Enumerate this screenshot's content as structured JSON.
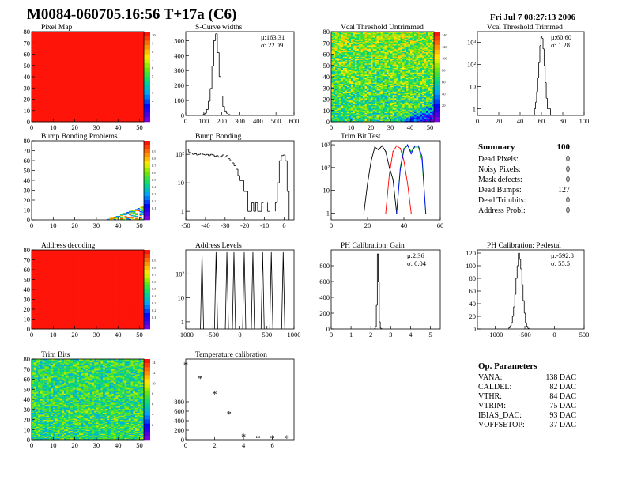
{
  "header": {
    "title": "M0084-060705.16:56 T+17a (C6)",
    "date": "Fri Jul  7 08:27:13 2006"
  },
  "summary": {
    "title": "Summary",
    "total": "100",
    "rows": [
      {
        "label": "Dead Pixels:",
        "value": "0"
      },
      {
        "label": "Noisy Pixels:",
        "value": "0"
      },
      {
        "label": "Mask defects:",
        "value": "0"
      },
      {
        "label": "Dead Bumps:",
        "value": "127"
      },
      {
        "label": "Dead Trimbits:",
        "value": "0"
      },
      {
        "label": "Address Probl:",
        "value": "0"
      }
    ]
  },
  "op_params": {
    "title": "Op. Parameters",
    "rows": [
      {
        "label": "VANA:",
        "value": "138 DAC"
      },
      {
        "label": "CALDEL:",
        "value": "82 DAC"
      },
      {
        "label": "VTHR:",
        "value": "84 DAC"
      },
      {
        "label": "VTRIM:",
        "value": "75 DAC"
      },
      {
        "label": "IBIAS_DAC:",
        "value": "93 DAC"
      },
      {
        "label": "VOFFSETOP:",
        "value": "37 DAC"
      }
    ]
  },
  "colors": {
    "hist_line": "#000000",
    "trim_red": "#ff0000",
    "trim_green": "#00aa00",
    "trim_blue": "#0000ff",
    "map_red": "#ff1a0a"
  },
  "chart_data": [
    {
      "id": "pixel_map",
      "type": "heatmap",
      "title": "Pixel Map",
      "xlim": [
        0,
        52
      ],
      "ylim": [
        0,
        80
      ],
      "xticks": [
        "0",
        "10",
        "20",
        "30",
        "40",
        "50"
      ],
      "yticks": [
        "0",
        "10",
        "20",
        "30",
        "40",
        "50",
        "60",
        "70",
        "80"
      ],
      "pattern": "uniform_high",
      "zrange": [
        0,
        10
      ],
      "palette_labels": [
        "10",
        "9",
        "8",
        "7",
        "6",
        "5",
        "4",
        "3",
        "2",
        "1"
      ]
    },
    {
      "id": "scurve_widths",
      "type": "histogram",
      "title": "S-Curve widths",
      "xlim": [
        0,
        600
      ],
      "ylim": [
        0,
        560
      ],
      "xticks": [
        "0",
        "100",
        "200",
        "300",
        "400",
        "500",
        "600"
      ],
      "yticks": [
        "0",
        "100",
        "200",
        "300",
        "400",
        "500"
      ],
      "stats": [
        "μ:163.31",
        "σ: 22.09"
      ],
      "bins": [
        [
          90,
          2
        ],
        [
          100,
          6
        ],
        [
          110,
          15
        ],
        [
          120,
          40
        ],
        [
          130,
          95
        ],
        [
          140,
          180
        ],
        [
          150,
          330
        ],
        [
          160,
          500
        ],
        [
          170,
          545
        ],
        [
          180,
          420
        ],
        [
          190,
          260
        ],
        [
          200,
          130
        ],
        [
          210,
          60
        ],
        [
          220,
          30
        ],
        [
          230,
          15
        ],
        [
          240,
          6
        ],
        [
          250,
          2
        ]
      ]
    },
    {
      "id": "vcal_untrimmed",
      "type": "heatmap",
      "title": "Vcal Threshold Untrimmed",
      "xlim": [
        0,
        52
      ],
      "ylim": [
        0,
        80
      ],
      "xticks": [
        "0",
        "10",
        "20",
        "30",
        "40",
        "50"
      ],
      "yticks": [
        "0",
        "10",
        "20",
        "30",
        "40",
        "50",
        "60",
        "70",
        "80"
      ],
      "pattern": "gradient_noisy",
      "zrange": [
        0,
        150
      ],
      "palette_labels": [
        "140",
        "120",
        "100",
        "80",
        "60",
        "40",
        "20"
      ]
    },
    {
      "id": "vcal_trimmed",
      "type": "histogram",
      "title": "Vcal Threshold Trimmed",
      "xlim": [
        0,
        100
      ],
      "ylog": true,
      "ylim": [
        0.5,
        3000
      ],
      "xticks": [
        "0",
        "20",
        "40",
        "60",
        "80",
        "100"
      ],
      "yticks": [
        "1",
        "10",
        "10²",
        "10³"
      ],
      "stats": [
        "μ:60.60",
        "σ: 1.28"
      ],
      "bins": [
        [
          54,
          1
        ],
        [
          55,
          2
        ],
        [
          56,
          6
        ],
        [
          57,
          25
        ],
        [
          58,
          120
        ],
        [
          59,
          700
        ],
        [
          60,
          1900
        ],
        [
          61,
          1500
        ],
        [
          62,
          500
        ],
        [
          63,
          90
        ],
        [
          64,
          15
        ],
        [
          65,
          3
        ],
        [
          66,
          1
        ],
        [
          68,
          1
        ]
      ]
    },
    {
      "id": "bump_map",
      "type": "heatmap",
      "title": "Bump Bonding Problems",
      "xlim": [
        0,
        52
      ],
      "ylim": [
        0,
        80
      ],
      "xticks": [
        "0",
        "10",
        "20",
        "30",
        "40",
        "50"
      ],
      "yticks": [
        "0",
        "10",
        "20",
        "30",
        "40",
        "50",
        "60",
        "70",
        "80"
      ],
      "pattern": "corner_sparse",
      "zrange": [
        0,
        1
      ],
      "palette_labels": [
        "1",
        "0.9",
        "0.8",
        "0.7",
        "0.6",
        "0.5",
        "0.4",
        "0.3",
        "0.2",
        "0.1"
      ]
    },
    {
      "id": "bump_bonding",
      "type": "histogram",
      "title": "Bump Bonding",
      "xlim": [
        -50,
        5
      ],
      "ylog": true,
      "ylim": [
        0.5,
        300
      ],
      "xticks": [
        "-50",
        "-40",
        "-30",
        "-20",
        "-10",
        "0"
      ],
      "yticks": [
        "1",
        "10",
        "10²"
      ],
      "bins": [
        [
          -49,
          150
        ],
        [
          -48,
          120
        ],
        [
          -47,
          110
        ],
        [
          -46,
          100
        ],
        [
          -45,
          105
        ],
        [
          -44,
          95
        ],
        [
          -43,
          100
        ],
        [
          -42,
          110
        ],
        [
          -41,
          100
        ],
        [
          -40,
          95
        ],
        [
          -39,
          100
        ],
        [
          -38,
          90
        ],
        [
          -37,
          100
        ],
        [
          -36,
          95
        ],
        [
          -35,
          85
        ],
        [
          -34,
          90
        ],
        [
          -33,
          80
        ],
        [
          -32,
          85
        ],
        [
          -31,
          95
        ],
        [
          -30,
          80
        ],
        [
          -29,
          90
        ],
        [
          -28,
          70
        ],
        [
          -27,
          60
        ],
        [
          -26,
          50
        ],
        [
          -25,
          40
        ],
        [
          -24,
          30
        ],
        [
          -23,
          18
        ],
        [
          -22,
          12
        ],
        [
          -21,
          12
        ],
        [
          -20,
          5
        ],
        [
          -19,
          5
        ],
        [
          -18,
          1
        ],
        [
          -17,
          1
        ],
        [
          -16,
          2
        ],
        [
          -15,
          1
        ],
        [
          -14,
          2
        ],
        [
          -13,
          1
        ],
        [
          -12,
          1
        ],
        [
          -11,
          2
        ],
        [
          -8,
          1
        ],
        [
          -4,
          2
        ],
        [
          -3,
          10
        ],
        [
          -2,
          60
        ],
        [
          -1,
          90
        ],
        [
          0,
          95
        ],
        [
          1,
          60
        ],
        [
          2,
          5
        ]
      ]
    },
    {
      "id": "trim_bit_test",
      "type": "line",
      "title": "Trim Bit Test",
      "xlim": [
        0,
        60
      ],
      "ylog": true,
      "ylim": [
        0.5,
        1500
      ],
      "xticks": [
        "0",
        "20",
        "40",
        "60"
      ],
      "yticks": [
        "1",
        "10",
        "10²",
        "10³"
      ],
      "series": [
        {
          "color_key": "hist_line",
          "x": [
            18,
            20,
            22,
            24,
            26,
            28,
            30,
            32,
            34,
            36
          ],
          "values": [
            1,
            20,
            200,
            800,
            600,
            900,
            500,
            100,
            30,
            1
          ]
        },
        {
          "color_key": "trim_red",
          "x": [
            30,
            32,
            34,
            36,
            38,
            40,
            42,
            44
          ],
          "values": [
            1,
            50,
            500,
            900,
            700,
            200,
            20,
            1
          ]
        },
        {
          "color_key": "trim_green",
          "x": [
            36,
            38,
            40,
            42,
            44,
            46,
            48,
            50,
            52
          ],
          "values": [
            1,
            100,
            700,
            900,
            500,
            800,
            800,
            200,
            1
          ]
        },
        {
          "color_key": "trim_blue",
          "x": [
            36,
            38,
            40,
            42,
            44,
            46,
            48,
            50,
            52
          ],
          "values": [
            1,
            80,
            600,
            1000,
            400,
            900,
            900,
            300,
            1
          ]
        }
      ]
    },
    {
      "id": "address_map",
      "type": "heatmap",
      "title": "Address decoding",
      "xlim": [
        0,
        52
      ],
      "ylim": [
        0,
        80
      ],
      "xticks": [
        "0",
        "10",
        "20",
        "30",
        "40",
        "50"
      ],
      "yticks": [
        "0",
        "10",
        "20",
        "30",
        "40",
        "50",
        "60",
        "70",
        "80"
      ],
      "pattern": "uniform_high",
      "zrange": [
        0,
        1
      ],
      "palette_labels": [
        "1",
        "0.9",
        "0.8",
        "0.7",
        "0.6",
        "0.5",
        "0.4",
        "0.3",
        "0.2",
        "0.1"
      ]
    },
    {
      "id": "address_levels",
      "type": "histogram",
      "title": "Address Levels",
      "xlim": [
        -1000,
        1000
      ],
      "ylog": true,
      "ylim": [
        0.5,
        1000
      ],
      "xticks": [
        "-1000",
        "-500",
        "0",
        "500",
        "1000"
      ],
      "yticks": [
        "1",
        "10",
        "10²"
      ],
      "bins": [
        [
          -700,
          800
        ],
        [
          -440,
          800
        ],
        [
          -240,
          800
        ],
        [
          -110,
          800
        ],
        [
          80,
          800
        ],
        [
          240,
          800
        ],
        [
          420,
          800
        ],
        [
          580,
          800
        ],
        [
          800,
          800
        ]
      ]
    },
    {
      "id": "ph_gain",
      "type": "histogram",
      "title": "PH Calibration: Gain",
      "xlim": [
        0,
        5.5
      ],
      "ylim": [
        0,
        1000
      ],
      "xticks": [
        "0",
        "1",
        "2",
        "3",
        "4",
        "5"
      ],
      "yticks": [
        "0",
        "200",
        "400",
        "600",
        "800"
      ],
      "stats": [
        "μ:2.36",
        "σ: 0.04"
      ],
      "bins": [
        [
          2.2,
          5
        ],
        [
          2.25,
          30
        ],
        [
          2.3,
          300
        ],
        [
          2.35,
          950
        ],
        [
          2.4,
          600
        ],
        [
          2.45,
          90
        ],
        [
          2.5,
          10
        ],
        [
          2.55,
          2
        ]
      ]
    },
    {
      "id": "ph_pedestal",
      "type": "histogram",
      "title": "PH Calibration: Pedestal",
      "xlim": [
        -1300,
        500
      ],
      "ylim": [
        0,
        125
      ],
      "xticks": [
        "-1000",
        "-500",
        "0",
        "500"
      ],
      "yticks": [
        "0",
        "20",
        "40",
        "60",
        "80",
        "100",
        "120"
      ],
      "stats": [
        "μ:-592.8",
        "σ: 55.5"
      ],
      "bins": [
        [
          -760,
          2
        ],
        [
          -740,
          5
        ],
        [
          -720,
          10
        ],
        [
          -700,
          20
        ],
        [
          -680,
          35
        ],
        [
          -660,
          55
        ],
        [
          -640,
          80
        ],
        [
          -620,
          100
        ],
        [
          -600,
          120
        ],
        [
          -580,
          110
        ],
        [
          -560,
          95
        ],
        [
          -540,
          70
        ],
        [
          -520,
          45
        ],
        [
          -500,
          25
        ],
        [
          -480,
          10
        ],
        [
          -460,
          4
        ],
        [
          -440,
          1
        ]
      ]
    },
    {
      "id": "trim_bits",
      "type": "heatmap",
      "title": "Trim Bits",
      "xlim": [
        0,
        52
      ],
      "ylim": [
        0,
        80
      ],
      "xticks": [
        "0",
        "10",
        "20",
        "30",
        "40",
        "50"
      ],
      "yticks": [
        "0",
        "10",
        "20",
        "30",
        "40",
        "50",
        "60",
        "70",
        "80"
      ],
      "pattern": "noisy_mid",
      "zrange": [
        0,
        15
      ],
      "palette_labels": [
        "14",
        "12",
        "10",
        "8",
        "6",
        "4",
        "2"
      ]
    },
    {
      "id": "temperature",
      "type": "scatter",
      "title": "Temperature calibration",
      "xlim": [
        0,
        7.5
      ],
      "ylim": [
        0,
        1700
      ],
      "xticks": [
        "0",
        "2",
        "4",
        "6"
      ],
      "yticks": [
        "0",
        "200",
        "400",
        "600",
        "800"
      ],
      "x": [
        0,
        1,
        2,
        3,
        4,
        5,
        6,
        7
      ],
      "values": [
        1580,
        1290,
        970,
        540,
        70,
        30,
        30,
        30
      ]
    }
  ]
}
